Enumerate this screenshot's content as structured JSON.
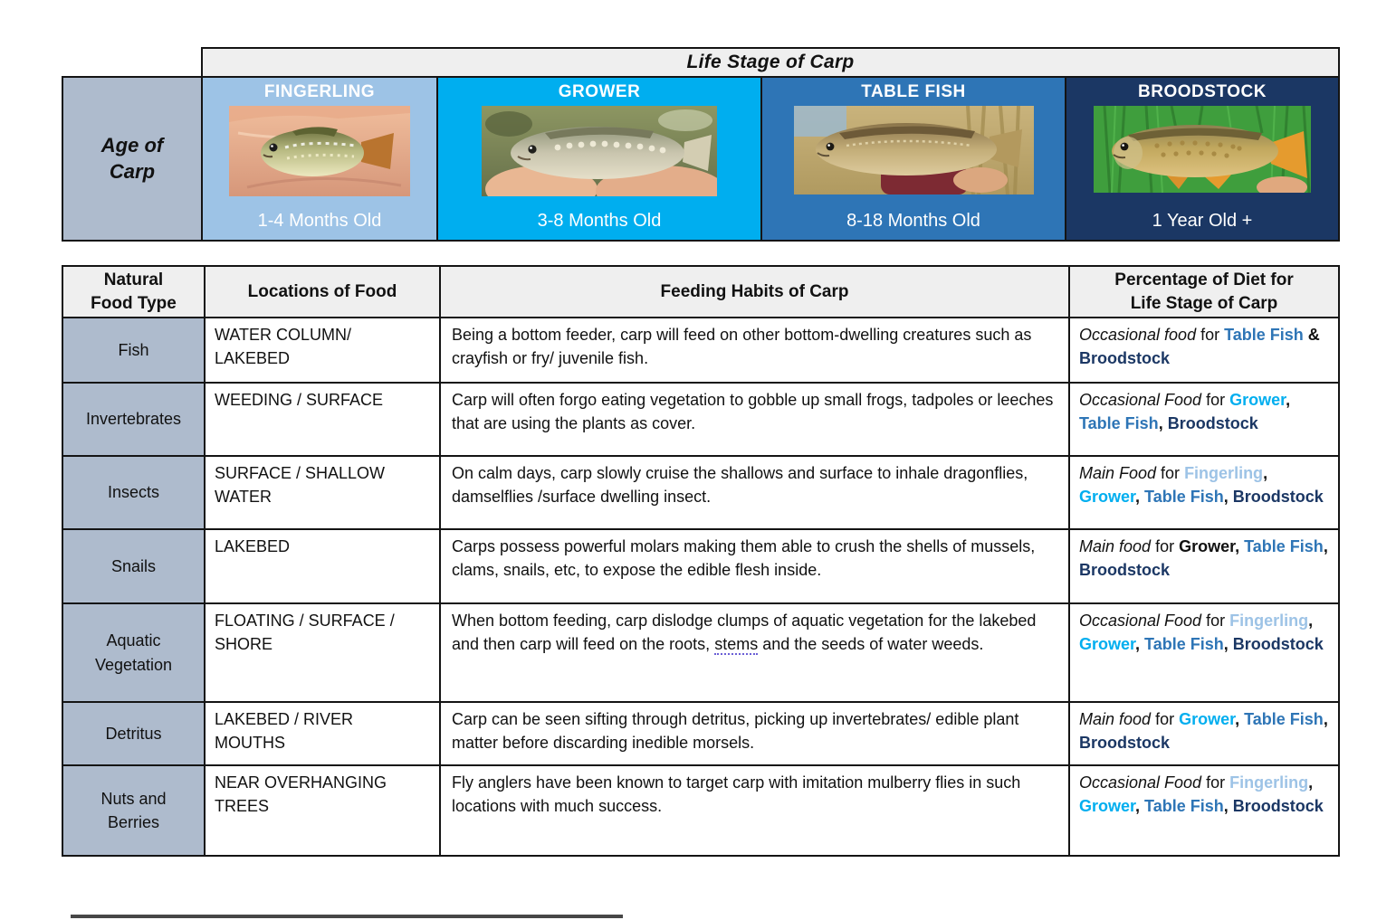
{
  "palette": {
    "fingerling_blue": "#9DC3E6",
    "grower_cyan": "#00AEEF",
    "table_fish_blue": "#2E75B6",
    "broodstock_navy": "#1B3764",
    "header_gray": "#EFEFEF",
    "row_label_blue_gray": "#AEBBCD"
  },
  "life_stage_table": {
    "title": "Life Stage of Carp",
    "age_row_label": "Age of\nCarp",
    "stages": [
      {
        "name": "FINGERLING",
        "age": "1-4 Months Old",
        "photo": "small-carp-in-palm-of-hand"
      },
      {
        "name": "GROWER",
        "age": "3-8 Months Old",
        "photo": "young-mirror-carp-held-in-two-hands"
      },
      {
        "name": "TABLE FISH",
        "age": "8-18 Months Old",
        "photo": "adult-carp-held-by-angler-in-reeds"
      },
      {
        "name": "BROODSTOCK",
        "age": "1 Year Old +",
        "photo": "large-golden-carp-against-green-grass"
      }
    ]
  },
  "food_table": {
    "headers": {
      "food_type": "Natural\nFood Type",
      "location": "Locations of Food",
      "habit": "Feeding Habits of Carp",
      "diet": "Percentage of Diet for\nLife Stage of Carp"
    },
    "rows": [
      {
        "food_type": "Fish",
        "location": "WATER COLUMN/\nLAKEBED",
        "habit": [
          {
            "t": "Being a bottom feeder, carp will feed on other bottom-dwelling creatures such as crayfish or fry/ juvenile fish.",
            "s": "p"
          }
        ],
        "diet": [
          {
            "t": "Occasional food",
            "s": "i"
          },
          {
            "t": " for ",
            "s": "p"
          },
          {
            "t": "Table Fish",
            "s": "tf"
          },
          {
            "t": " & ",
            "s": "b"
          },
          {
            "t": "Broodstock",
            "s": "bs"
          }
        ]
      },
      {
        "food_type": "Invertebrates",
        "location": "WEEDING / SURFACE",
        "habit": [
          {
            "t": "Carp will often forgo eating vegetation to gobble up small frogs, tadpoles or leeches that are using the plants as cover.",
            "s": "p"
          }
        ],
        "diet": [
          {
            "t": "Occasional Food",
            "s": "i"
          },
          {
            "t": " for ",
            "s": "p"
          },
          {
            "t": "Grower",
            "s": "grow"
          },
          {
            "t": ", ",
            "s": "b"
          },
          {
            "t": "Table Fish",
            "s": "tf"
          },
          {
            "t": ", ",
            "s": "b"
          },
          {
            "t": "Broodstock",
            "s": "bs"
          }
        ]
      },
      {
        "food_type": "Insects",
        "location": "SURFACE / SHALLOW\nWATER",
        "habit": [
          {
            "t": "On calm days, carp slowly cruise the shallows and surface to inhale dragonflies, damselflies /surface dwelling insect.",
            "s": "p"
          }
        ],
        "diet": [
          {
            "t": "Main Food",
            "s": "i"
          },
          {
            "t": " for ",
            "s": "p"
          },
          {
            "t": "Fingerling",
            "s": "fing"
          },
          {
            "t": ", ",
            "s": "b"
          },
          {
            "t": "Grower",
            "s": "grow"
          },
          {
            "t": ", ",
            "s": "b"
          },
          {
            "t": "Table Fish",
            "s": "tf"
          },
          {
            "t": ", ",
            "s": "b"
          },
          {
            "t": "Broodstock",
            "s": "bs"
          }
        ]
      },
      {
        "food_type": "Snails",
        "location": "LAKEBED",
        "habit": [
          {
            "t": "Carps possess powerful molars making them able to crush the shells of mussels, clams, snails, etc, to expose the edible flesh inside.",
            "s": "p"
          }
        ],
        "diet": [
          {
            "t": "Main food",
            "s": "i"
          },
          {
            "t": " for ",
            "s": "p"
          },
          {
            "t": "Grower,",
            "s": "b"
          },
          {
            "t": " ",
            "s": "p"
          },
          {
            "t": "Table Fish",
            "s": "tf"
          },
          {
            "t": ", ",
            "s": "b"
          },
          {
            "t": "Broodstock",
            "s": "bs"
          }
        ]
      },
      {
        "food_type": "Aquatic\nVegetation",
        "location": "FLOATING / SURFACE /\nSHORE",
        "habit": [
          {
            "t": "When bottom feeding, carp dislodge clumps of aquatic vegetation for the lakebed and then carp will feed on the roots, ",
            "s": "p"
          },
          {
            "t": "stems",
            "s": "sp"
          },
          {
            "t": " and the seeds of water weeds.",
            "s": "p"
          }
        ],
        "diet": [
          {
            "t": "Occasional Food",
            "s": "i"
          },
          {
            "t": " for ",
            "s": "p"
          },
          {
            "t": "Fingerling",
            "s": "fing"
          },
          {
            "t": ", ",
            "s": "b"
          },
          {
            "t": "Grower",
            "s": "grow"
          },
          {
            "t": ", ",
            "s": "b"
          },
          {
            "t": "Table Fish",
            "s": "tf"
          },
          {
            "t": ", ",
            "s": "b"
          },
          {
            "t": "Broodstock",
            "s": "bs"
          }
        ]
      },
      {
        "food_type": "Detritus",
        "location": "LAKEBED / RIVER\nMOUTHS",
        "habit": [
          {
            "t": "Carp can be seen sifting through detritus, picking up invertebrates/ edible plant matter before discarding inedible morsels.",
            "s": "p"
          }
        ],
        "diet": [
          {
            "t": "Main food",
            "s": "i"
          },
          {
            "t": " for ",
            "s": "p"
          },
          {
            "t": "Grower",
            "s": "grow"
          },
          {
            "t": ", ",
            "s": "b"
          },
          {
            "t": "Table Fish",
            "s": "tf"
          },
          {
            "t": ", ",
            "s": "b"
          },
          {
            "t": "Broodstock",
            "s": "bs"
          }
        ]
      },
      {
        "food_type": "Nuts and\nBerries",
        "location": "NEAR OVERHANGING\nTREES",
        "habit": [
          {
            "t": "Fly anglers have been known to target carp with imitation mulberry flies in such locations with much success.",
            "s": "p"
          }
        ],
        "diet": [
          {
            "t": "Occasional Food",
            "s": "i"
          },
          {
            "t": " for ",
            "s": "p"
          },
          {
            "t": "Fingerling",
            "s": "fing"
          },
          {
            "t": ", ",
            "s": "b"
          },
          {
            "t": "Grower",
            "s": "grow"
          },
          {
            "t": ", ",
            "s": "b"
          },
          {
            "t": "Table Fish",
            "s": "tf"
          },
          {
            "t": ", ",
            "s": "b"
          },
          {
            "t": "Broodstock",
            "s": "bs"
          }
        ]
      }
    ]
  }
}
